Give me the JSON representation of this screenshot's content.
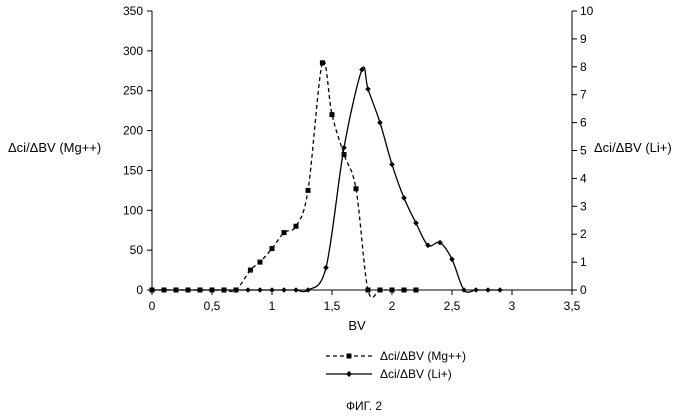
{
  "chart_data": {
    "type": "line",
    "caption": "ФИГ. 2",
    "xlabel": "BV",
    "ylabel_left": "Δci/ΔBV (Mg++)",
    "ylabel_right": "Δci/ΔBV (Li+)",
    "xlim": [
      0,
      3.5
    ],
    "ylim_left": [
      0,
      350
    ],
    "ylim_right": [
      0,
      10
    ],
    "x_ticks": [
      0,
      0.5,
      1,
      1.5,
      2,
      2.5,
      3,
      3.5
    ],
    "x_tick_labels": [
      "0",
      "0,5",
      "1",
      "1,5",
      "2",
      "2,5",
      "3",
      "3,5"
    ],
    "y_ticks_left": [
      0,
      50,
      100,
      150,
      200,
      250,
      300,
      350
    ],
    "y_tick_labels_left": [
      "0",
      "50",
      "100",
      "150",
      "200",
      "250",
      "300",
      "350"
    ],
    "y_ticks_right": [
      0,
      1,
      2,
      3,
      4,
      5,
      6,
      7,
      8,
      9,
      10
    ],
    "y_tick_labels_right": [
      "0",
      "1",
      "2",
      "3",
      "4",
      "5",
      "6",
      "7",
      "8",
      "9",
      "10"
    ],
    "grid": false,
    "legend_placement": "bottom-center",
    "series": [
      {
        "name": "Δci/ΔBV (Mg++)",
        "axis": "left",
        "line_style": "dashed",
        "marker": "square",
        "color": "#000000",
        "x": [
          0,
          0.1,
          0.2,
          0.3,
          0.4,
          0.5,
          0.6,
          0.7,
          0.82,
          0.9,
          1.0,
          1.1,
          1.2,
          1.3,
          1.42,
          1.5,
          1.6,
          1.7,
          1.8,
          1.9,
          2.0,
          2.1,
          2.2
        ],
        "y": [
          0,
          0,
          0,
          0,
          0,
          0,
          0,
          0,
          25,
          35,
          52,
          72,
          80,
          125,
          285,
          220,
          170,
          127,
          0,
          0,
          0,
          0,
          0
        ]
      },
      {
        "name": "Δci/ΔBV (Li+)",
        "axis": "right",
        "line_style": "solid",
        "marker": "diamond",
        "color": "#000000",
        "x": [
          0,
          0.1,
          0.2,
          0.3,
          0.4,
          0.5,
          0.6,
          0.7,
          0.8,
          0.9,
          1.0,
          1.1,
          1.2,
          1.3,
          1.45,
          1.6,
          1.75,
          1.8,
          1.9,
          2.0,
          2.1,
          2.2,
          2.3,
          2.4,
          2.5,
          2.6,
          2.7,
          2.8,
          2.9
        ],
        "y": [
          0,
          0,
          0,
          0,
          0,
          0,
          0,
          0,
          0,
          0,
          0,
          0,
          0,
          0,
          0.8,
          5.1,
          7.9,
          7.2,
          6.0,
          4.5,
          3.3,
          2.4,
          1.6,
          1.7,
          1.1,
          0,
          0,
          0,
          0
        ]
      }
    ]
  }
}
